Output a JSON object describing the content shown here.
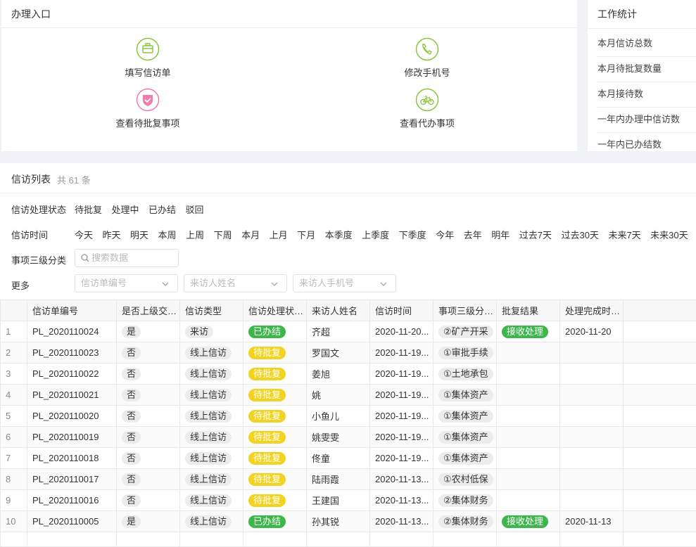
{
  "entry": {
    "title": "办理入口",
    "items": [
      "填写信访单",
      "修改手机号",
      "查看待批复事项",
      "查看代办事项"
    ]
  },
  "stats": {
    "title": "工作统计",
    "items": [
      "本月信访总数",
      "本月待批复数量",
      "本月接待数",
      "一年内办理中信访数",
      "一年内已办结数"
    ]
  },
  "list": {
    "title": "信访列表",
    "count": "共 61 条"
  },
  "filters": {
    "status": {
      "label": "信访处理状态",
      "options": [
        "待批复",
        "处理中",
        "已办结",
        "驳回"
      ]
    },
    "time": {
      "label": "信访时间",
      "options": [
        "今天",
        "昨天",
        "明天",
        "本周",
        "上周",
        "下周",
        "本月",
        "上月",
        "下月",
        "本季度",
        "上季度",
        "下季度",
        "今年",
        "去年",
        "明年",
        "过去7天",
        "过去30天",
        "未来7天",
        "未来30天"
      ]
    },
    "category": {
      "label": "事项三级分类",
      "placeholder": "搜索数据"
    },
    "more": {
      "label": "更多",
      "selects": [
        "信访单编号",
        "来访人姓名",
        "来访人手机号"
      ]
    }
  },
  "table": {
    "header": [
      "信访单编号",
      "是否上级交…",
      "信访类型",
      "信访处理状…",
      "来访人姓名",
      "信访时间",
      "事项三级分…",
      "批复结果",
      "处理完成时…"
    ],
    "rows": [
      {
        "index": 1,
        "cells": [
          "PL_2020110024",
          {
            "text": "是",
            "bg": "#ececec",
            "fg": "#333333"
          },
          {
            "text": "来访",
            "bg": "#ececec",
            "fg": "#333333"
          },
          {
            "text": "已办结",
            "bg": "#3cb84a",
            "fg": "#ffffff"
          },
          "齐超",
          "2020-11-20...",
          {
            "text": "②矿产开采",
            "bg": "#ececec",
            "fg": "#333333"
          },
          {
            "text": "接收处理",
            "bg": "#3cb84a",
            "fg": "#ffffff"
          },
          "2020-11-20"
        ]
      },
      {
        "index": 2,
        "cells": [
          "PL_2020110023",
          {
            "text": "否",
            "bg": "#ececec",
            "fg": "#333333"
          },
          {
            "text": "线上信访",
            "bg": "#ececec",
            "fg": "#333333"
          },
          {
            "text": "待批复",
            "bg": "#f2d322",
            "fg": "#ffffff"
          },
          "罗国文",
          "2020-11-19...",
          {
            "text": "①审批手续",
            "bg": "#ececec",
            "fg": "#333333"
          },
          null,
          null
        ]
      },
      {
        "index": 3,
        "cells": [
          "PL_2020110022",
          {
            "text": "否",
            "bg": "#ececec",
            "fg": "#333333"
          },
          {
            "text": "线上信访",
            "bg": "#ececec",
            "fg": "#333333"
          },
          {
            "text": "待批复",
            "bg": "#f2d322",
            "fg": "#ffffff"
          },
          "姜旭",
          "2020-11-19...",
          {
            "text": "①土地承包",
            "bg": "#ececec",
            "fg": "#333333"
          },
          null,
          null
        ]
      },
      {
        "index": 4,
        "cells": [
          "PL_2020110021",
          {
            "text": "否",
            "bg": "#ececec",
            "fg": "#333333"
          },
          {
            "text": "线上信访",
            "bg": "#ececec",
            "fg": "#333333"
          },
          {
            "text": "待批复",
            "bg": "#f2d322",
            "fg": "#ffffff"
          },
          "姚",
          "2020-11-19...",
          {
            "text": "①集体资产",
            "bg": "#ececec",
            "fg": "#333333"
          },
          null,
          null
        ]
      },
      {
        "index": 5,
        "cells": [
          "PL_2020110020",
          {
            "text": "否",
            "bg": "#ececec",
            "fg": "#333333"
          },
          {
            "text": "线上信访",
            "bg": "#ececec",
            "fg": "#333333"
          },
          {
            "text": "待批复",
            "bg": "#f2d322",
            "fg": "#ffffff"
          },
          "小鱼儿",
          "2020-11-19...",
          {
            "text": "①集体资产",
            "bg": "#ececec",
            "fg": "#333333"
          },
          null,
          null
        ]
      },
      {
        "index": 6,
        "cells": [
          "PL_2020110019",
          {
            "text": "否",
            "bg": "#ececec",
            "fg": "#333333"
          },
          {
            "text": "线上信访",
            "bg": "#ececec",
            "fg": "#333333"
          },
          {
            "text": "待批复",
            "bg": "#f2d322",
            "fg": "#ffffff"
          },
          "姚雯雯",
          "2020-11-19...",
          {
            "text": "①集体资产",
            "bg": "#ececec",
            "fg": "#333333"
          },
          null,
          null
        ]
      },
      {
        "index": 7,
        "cells": [
          "PL_2020110018",
          {
            "text": "否",
            "bg": "#ececec",
            "fg": "#333333"
          },
          {
            "text": "线上信访",
            "bg": "#ececec",
            "fg": "#333333"
          },
          {
            "text": "待批复",
            "bg": "#f2d322",
            "fg": "#ffffff"
          },
          "佟童",
          "2020-11-19...",
          {
            "text": "①集体资产",
            "bg": "#ececec",
            "fg": "#333333"
          },
          null,
          null
        ]
      },
      {
        "index": 8,
        "cells": [
          "PL_2020110017",
          {
            "text": "否",
            "bg": "#ececec",
            "fg": "#333333"
          },
          {
            "text": "线上信访",
            "bg": "#ececec",
            "fg": "#333333"
          },
          {
            "text": "待批复",
            "bg": "#f2d322",
            "fg": "#ffffff"
          },
          "陆雨霞",
          "2020-11-13...",
          {
            "text": "①农村低保",
            "bg": "#ececec",
            "fg": "#333333"
          },
          null,
          null
        ]
      },
      {
        "index": 9,
        "cells": [
          "PL_2020110016",
          {
            "text": "否",
            "bg": "#ececec",
            "fg": "#333333"
          },
          {
            "text": "线上信访",
            "bg": "#ececec",
            "fg": "#333333"
          },
          {
            "text": "待批复",
            "bg": "#f2d322",
            "fg": "#ffffff"
          },
          "王建国",
          "2020-11-13...",
          {
            "text": "②集体财务",
            "bg": "#ececec",
            "fg": "#333333"
          },
          null,
          null
        ]
      },
      {
        "index": 10,
        "cells": [
          "PL_2020110005",
          {
            "text": "是",
            "bg": "#ececec",
            "fg": "#333333"
          },
          {
            "text": "线上信访",
            "bg": "#ececec",
            "fg": "#333333"
          },
          {
            "text": "已办结",
            "bg": "#3cb84a",
            "fg": "#ffffff"
          },
          "孙其锐",
          "2020-11-13...",
          {
            "text": "②集体财务",
            "bg": "#ececec",
            "fg": "#333333"
          },
          {
            "text": "接收处理",
            "bg": "#3cb84a",
            "fg": "#ffffff"
          },
          "2020-11-13"
        ]
      }
    ]
  }
}
